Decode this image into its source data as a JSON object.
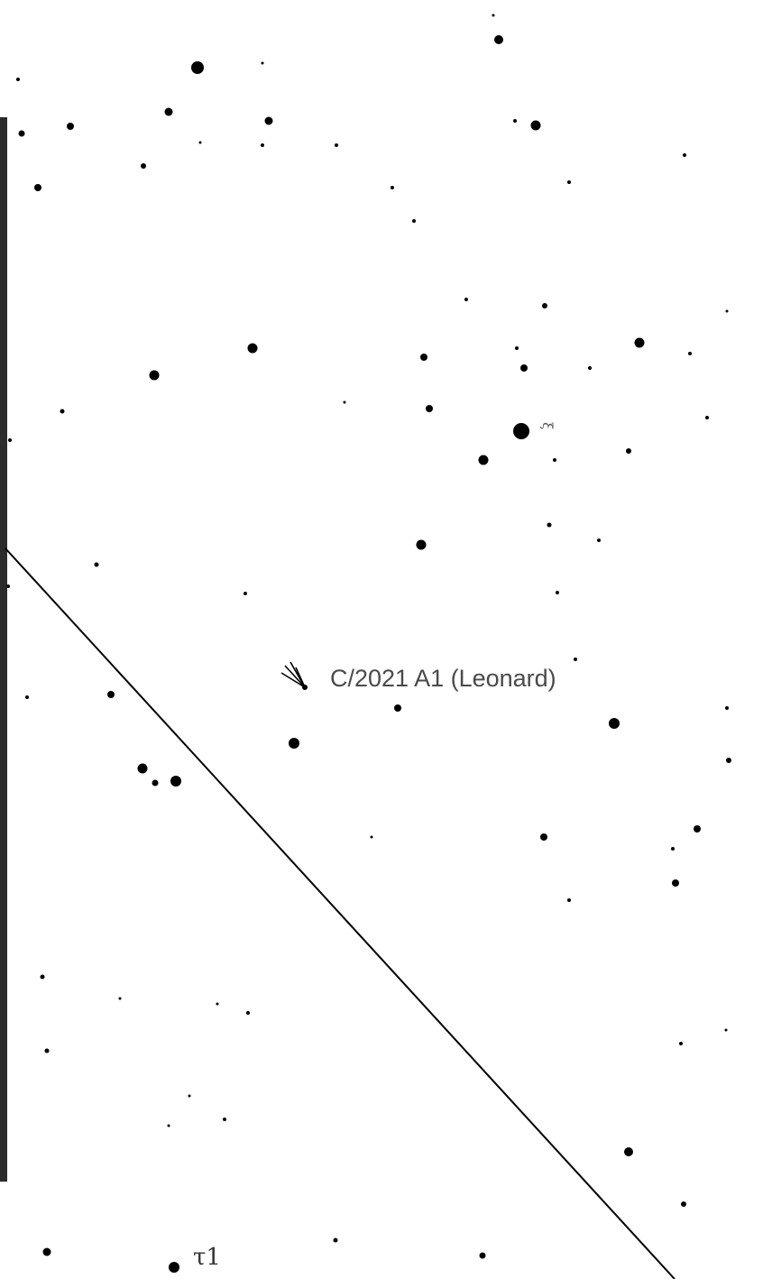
{
  "chart": {
    "background_color": "#ffffff",
    "ink_color": "#000000",
    "frame_color": "#2b2b2b"
  },
  "comet": {
    "designation": "C/2021 A1 (Leonard)",
    "icon": "comet-icon"
  },
  "star_labels": {
    "tau1": "τ1",
    "xi": "ξ"
  }
}
